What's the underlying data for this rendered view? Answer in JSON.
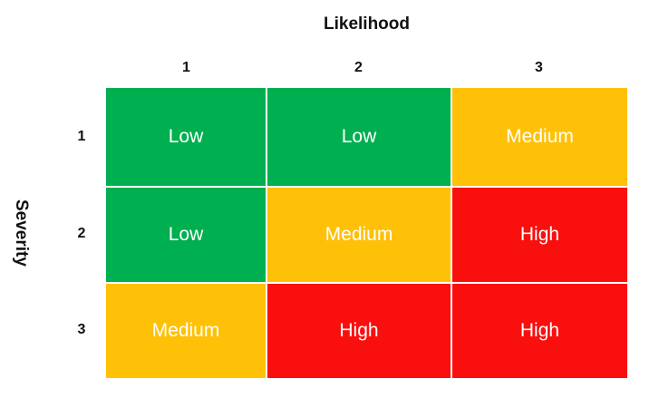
{
  "chart_data": {
    "type": "heatmap",
    "title": "",
    "xlabel": "Likelihood",
    "ylabel": "Severity",
    "x_categories": [
      "1",
      "2",
      "3"
    ],
    "y_categories": [
      "1",
      "2",
      "3"
    ],
    "values": [
      [
        "Low",
        "Low",
        "Medium"
      ],
      [
        "Low",
        "Medium",
        "High"
      ],
      [
        "Medium",
        "High",
        "High"
      ]
    ],
    "legend_position": "none",
    "grid": "white 2px lines between cells",
    "color_map": {
      "Low": "#00AF50",
      "Medium": "#FFC107",
      "High": "#FA0F0F"
    },
    "colors": {
      "cell_text": "#FFFFFF",
      "axis_text": "#111111",
      "background": "#FFFFFF"
    }
  }
}
